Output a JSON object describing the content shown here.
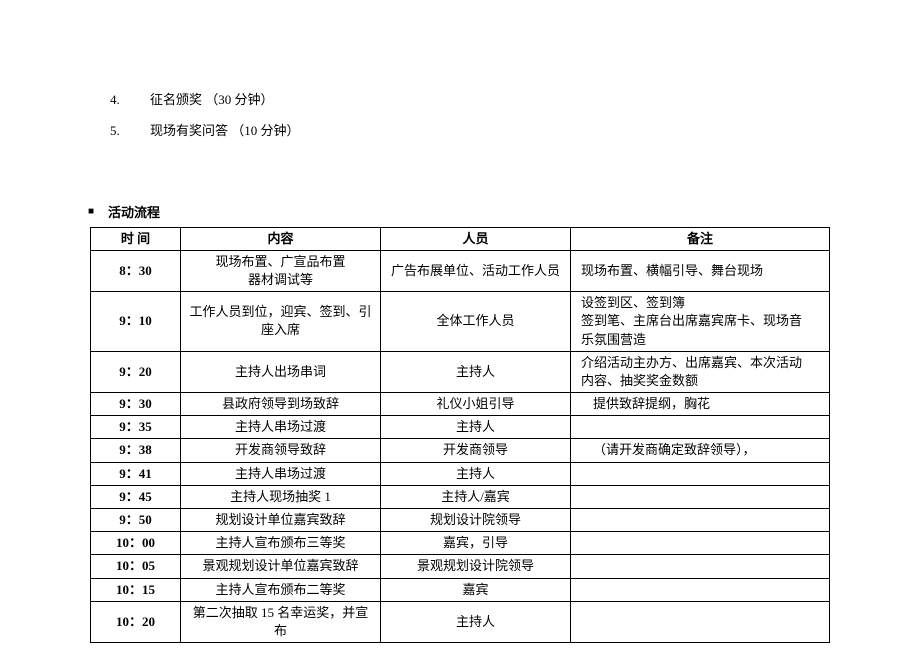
{
  "list_items": [
    {
      "num": "4.",
      "text": "征名颁奖 （30 分钟）"
    },
    {
      "num": "5.",
      "text": "现场有奖问答 （10 分钟）"
    }
  ],
  "section_title": "活动流程",
  "bullet": "■",
  "table": {
    "headers": [
      "时 间",
      "内容",
      "人员",
      "备注"
    ],
    "rows": [
      {
        "time": "8：30",
        "content": "现场布置、广宣品布置\n器材调试等",
        "person": "广告布展单位、活动工作人员",
        "note": "现场布置、横幅引导、舞台现场",
        "note_class": ""
      },
      {
        "time": "9：10",
        "content": "工作人员到位，迎宾、签到、引\n座入席",
        "person": "全体工作人员",
        "note": "设签到区、签到簿\n签到笔、主席台出席嘉宾席卡、现场音\n乐氛围营造",
        "note_class": ""
      },
      {
        "time": "9：20",
        "content": "主持人出场串词",
        "person": "主持人",
        "note": "介绍活动主办方、出席嘉宾、本次活动\n内容、抽奖奖金数额",
        "note_class": ""
      },
      {
        "time": "9：30",
        "content": "县政府领导到场致辞",
        "person": "礼仪小姐引导",
        "note": "提供致辞提纲，胸花",
        "note_class": "note-indent"
      },
      {
        "time": "9：35",
        "content": "主持人串场过渡",
        "person": "主持人",
        "note": "",
        "note_class": ""
      },
      {
        "time": "9：38",
        "content": "开发商领导致辞",
        "person": "开发商领导",
        "note": "（请开发商确定致辞领导），",
        "note_class": "note-indent"
      },
      {
        "time": "9：41",
        "content": "主持人串场过渡",
        "person": "主持人",
        "note": "",
        "note_class": ""
      },
      {
        "time": "9：45",
        "content": "主持人现场抽奖 1",
        "person": "主持人/嘉宾",
        "note": "",
        "note_class": ""
      },
      {
        "time": "9：50",
        "content": "规划设计单位嘉宾致辞",
        "person": "规划设计院领导",
        "note": "",
        "note_class": ""
      },
      {
        "time": "10：00",
        "content": "主持人宣布颁布三等奖",
        "person": "嘉宾，引导",
        "note": "",
        "note_class": ""
      },
      {
        "time": "10：05",
        "content": "景观规划设计单位嘉宾致辞",
        "person": "景观规划设计院领导",
        "note": "",
        "note_class": ""
      },
      {
        "time": "10：15",
        "content": "主持人宣布颁布二等奖",
        "person": "嘉宾",
        "note": "",
        "note_class": ""
      },
      {
        "time": "10：20",
        "content": "第二次抽取 15 名幸运奖，并宣布",
        "person": "主持人",
        "note": "",
        "note_class": ""
      }
    ]
  }
}
